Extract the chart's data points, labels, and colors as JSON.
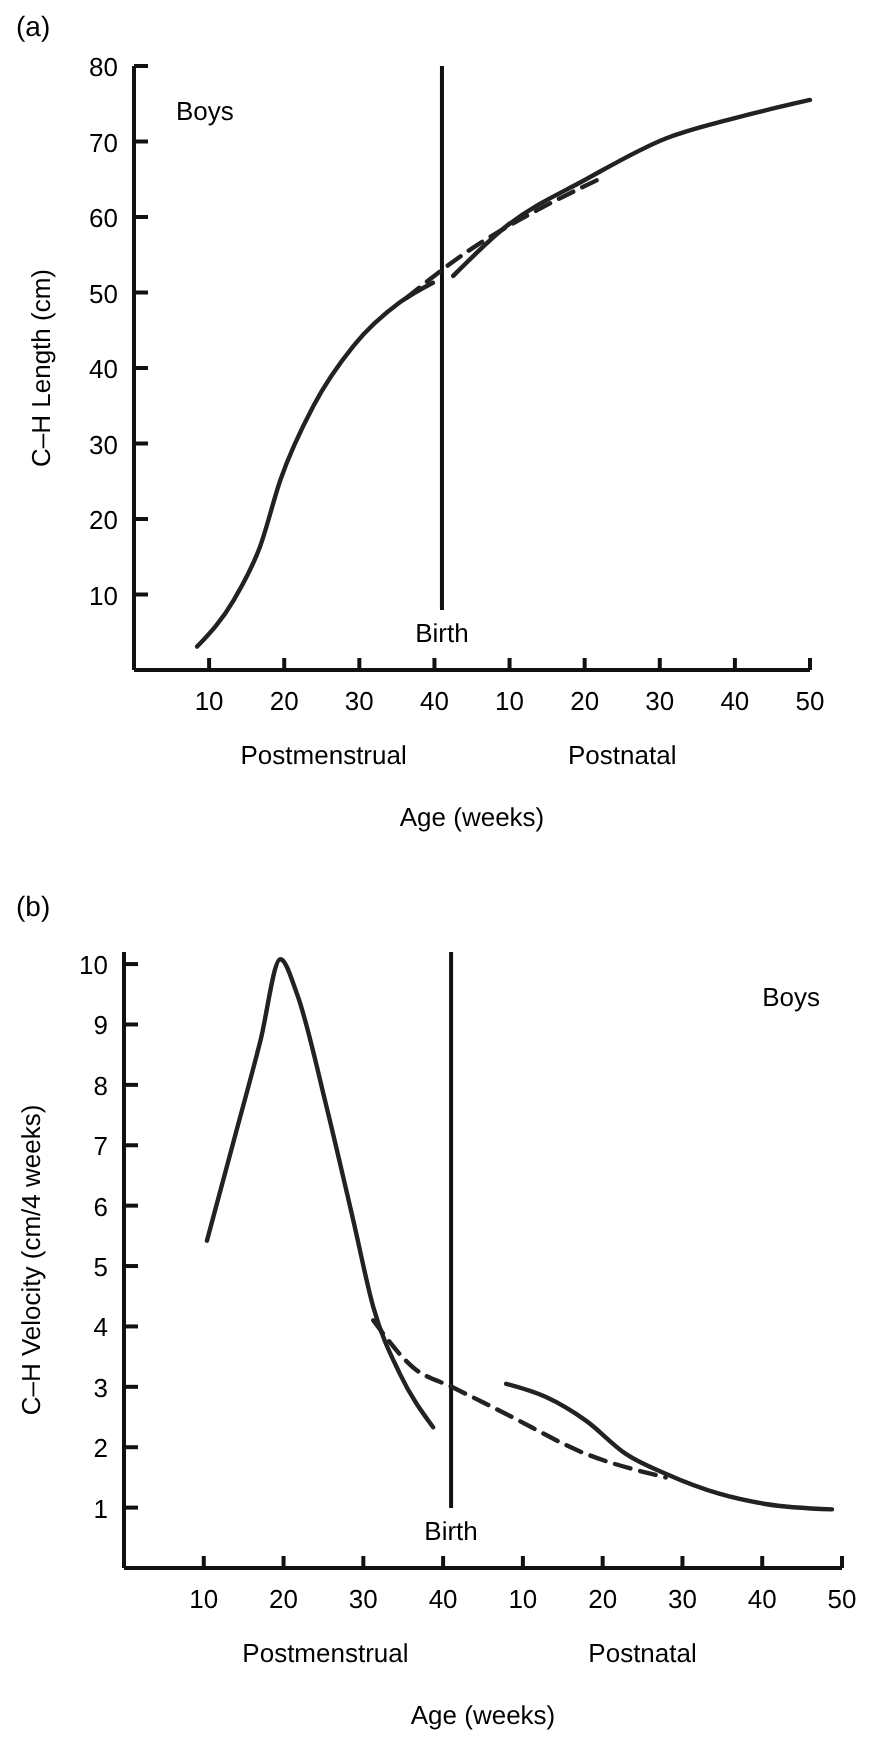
{
  "chart_data": [
    {
      "type": "line",
      "title": "(a)",
      "xlabel": "Age (weeks)",
      "ylabel": "C–H Length (cm)",
      "xlim": [
        0,
        90
      ],
      "ylim": [
        0,
        80
      ],
      "xticks": [
        10,
        20,
        30,
        40
      ],
      "x2lim": [
        -40,
        50
      ],
      "x2ticks": [
        10,
        20,
        30,
        40,
        50
      ],
      "yticks": [
        10,
        20,
        30,
        40,
        50,
        60,
        70,
        80
      ],
      "grid": false,
      "marker": "none",
      "series": [
        {
          "color": "#222222",
          "line_style": "solid",
          "x": [
            8.4,
            13.3,
            16.8,
            19.5,
            23.9,
            29.2,
            35.4,
            39.8
          ],
          "values": [
            3.1,
            9.3,
            16.4,
            25.2,
            35,
            42.9,
            48.7,
            51.3
          ]
        },
        {
          "color": "#222222",
          "line_style": "solid",
          "x": [
            42.5,
            49.6,
            60.2,
            70.8,
            79.6,
            90
          ],
          "values": [
            52.2,
            58.8,
            65,
            70.4,
            73,
            75.5
          ]
        },
        {
          "color": "#222222",
          "line_style": "dashed",
          "x": [
            36.3,
            44.2,
            53.1,
            61.9
          ],
          "values": [
            49.3,
            55.3,
            60.6,
            65
          ]
        }
      ],
      "ref_lines": [
        {
          "axis": "x",
          "value": 41,
          "label": "Birth",
          "color": "#111111"
        }
      ],
      "annotations": [
        "Boys",
        "Postmenstrual",
        "Postnatal"
      ]
    },
    {
      "type": "line",
      "title": "(b)",
      "xlabel": "Age (weeks)",
      "ylabel": "C–H Velocity (cm/4 weeks)",
      "xlim": [
        0,
        90
      ],
      "ylim": [
        0,
        10.2
      ],
      "xticks": [
        10,
        20,
        30,
        40
      ],
      "x2lim": [
        -40,
        50
      ],
      "x2ticks": [
        10,
        20,
        30,
        40,
        50
      ],
      "yticks": [
        1,
        2,
        3,
        4,
        5,
        6,
        7,
        8,
        9,
        10
      ],
      "grid": false,
      "marker": "none",
      "series": [
        {
          "color": "#222222",
          "line_style": "solid",
          "x": [
            10.4,
            13.75,
            17.1,
            19.6,
            21.7,
            25.4,
            28.75,
            31.25,
            34.6,
            38.75
          ],
          "values": [
            5.42,
            7.07,
            8.73,
            10.08,
            9.5,
            7.63,
            5.75,
            4.32,
            3.21,
            2.33
          ]
        },
        {
          "color": "#222222",
          "line_style": "solid",
          "x": [
            47.9,
            52.9,
            57.9,
            62.9,
            67.9,
            74.6,
            80.4,
            88.75
          ],
          "values": [
            3.05,
            2.83,
            2.44,
            1.89,
            1.56,
            1.23,
            1.06,
            0.97
          ]
        },
        {
          "color": "#222222",
          "line_style": "dashed",
          "x": [
            31.25,
            36.25,
            41.25,
            47.9,
            57.9,
            67.9
          ],
          "values": [
            4.1,
            3.32,
            2.99,
            2.55,
            1.89,
            1.5
          ]
        }
      ],
      "ref_lines": [
        {
          "axis": "x",
          "value": 41,
          "label": "Birth",
          "color": "#111111"
        }
      ],
      "annotations": [
        "Boys",
        "Postmenstrual",
        "Postnatal"
      ]
    }
  ]
}
